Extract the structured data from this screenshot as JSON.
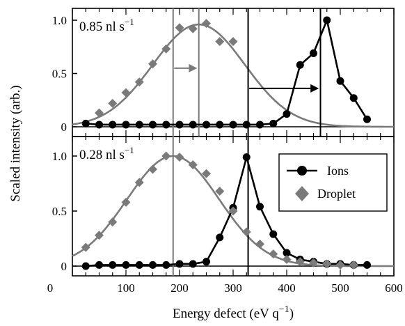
{
  "chart_data": [
    {
      "type": "line",
      "panel": "top",
      "annotation": "0.85 nl s",
      "annotation_sup": "−1",
      "xlim": [
        0,
        600
      ],
      "ylim": [
        0,
        1.0
      ],
      "y_ticks": [
        0,
        0.5,
        1.0
      ],
      "y_tick_labels": [
        "0",
        "0.5",
        "1.0"
      ],
      "vertical_lines": [
        {
          "x": 188,
          "color": "#7a7a7a"
        },
        {
          "x": 236,
          "color": "#7a7a7a"
        },
        {
          "x": 328,
          "color": "#000000"
        },
        {
          "x": 463,
          "color": "#000000"
        }
      ],
      "arrows": [
        {
          "x_from": 190,
          "x_to": 233,
          "y": 0.55,
          "color": "#7a7a7a"
        },
        {
          "x_from": 330,
          "x_to": 460,
          "y": 0.36,
          "color": "#000000"
        }
      ],
      "series": [
        {
          "name": "Ions",
          "marker": "circle",
          "color": "#000000",
          "x": [
            25,
            50,
            75,
            100,
            125,
            150,
            175,
            200,
            225,
            250,
            275,
            300,
            325,
            350,
            375,
            400,
            425,
            450,
            475,
            500,
            525,
            550
          ],
          "y": [
            0.03,
            0.02,
            0.02,
            0.02,
            0.02,
            0.02,
            0.02,
            0.02,
            0.02,
            0.02,
            0.02,
            0.02,
            0.02,
            0.02,
            0.03,
            0.12,
            0.58,
            0.69,
            1.0,
            0.43,
            0.27,
            0.07
          ]
        },
        {
          "name": "Droplet",
          "marker": "diamond",
          "color": "#7a7a7a",
          "x": [
            50,
            75,
            100,
            125,
            150,
            175,
            200,
            225,
            250,
            275,
            300
          ],
          "y": [
            0.13,
            0.22,
            0.32,
            0.42,
            0.59,
            0.73,
            0.93,
            0.92,
            0.97,
            0.8,
            0.8
          ]
        }
      ],
      "fit": {
        "color": "#7a7a7a",
        "center": 236,
        "sigma": 86,
        "amplitude": 0.96
      }
    },
    {
      "type": "line",
      "panel": "bottom",
      "annotation": "0.28 nl s",
      "annotation_sup": "−1",
      "xlim": [
        0,
        600
      ],
      "ylim": [
        0,
        1.0
      ],
      "y_ticks": [
        0,
        0.5,
        1.0
      ],
      "y_tick_labels": [
        "0",
        "0.5",
        "1.0"
      ],
      "vertical_lines": [
        {
          "x": 188,
          "color": "#7a7a7a"
        },
        {
          "x": 328,
          "color": "#000000"
        }
      ],
      "series": [
        {
          "name": "Ions",
          "marker": "circle",
          "color": "#000000",
          "x": [
            25,
            50,
            75,
            100,
            125,
            150,
            175,
            200,
            225,
            250,
            275,
            300,
            325,
            350,
            375,
            400,
            425,
            450,
            475,
            500,
            525,
            550
          ],
          "y": [
            0.0,
            0.01,
            0.01,
            0.01,
            0.01,
            0.01,
            0.01,
            0.02,
            0.02,
            0.04,
            0.26,
            0.53,
            0.99,
            0.54,
            0.29,
            0.12,
            0.06,
            0.04,
            0.02,
            0.02,
            0.01,
            0.01
          ]
        },
        {
          "name": "Droplet",
          "marker": "diamond",
          "color": "#7a7a7a",
          "x": [
            25,
            50,
            75,
            100,
            125,
            150,
            175,
            200,
            225,
            250,
            275,
            300,
            325,
            350,
            375,
            400,
            425,
            450,
            475,
            500,
            525
          ],
          "y": [
            0.17,
            0.28,
            0.4,
            0.58,
            0.76,
            0.88,
            1.0,
            0.99,
            0.92,
            0.84,
            0.68,
            0.5,
            0.31,
            0.2,
            0.11,
            0.06,
            0.04,
            0.03,
            0.02,
            0.01,
            0.01
          ]
        }
      ],
      "fit": {
        "color": "#7a7a7a",
        "center": 188,
        "sigma": 86,
        "amplitude": 1.0
      }
    }
  ],
  "x_axis": {
    "label": "Energy defect (eV q",
    "label_sup": "−1",
    "label_end": ")",
    "ticks": [
      0,
      100,
      200,
      300,
      400,
      500,
      600
    ],
    "tick_labels": [
      "0",
      "100",
      "200",
      "300",
      "400",
      "500",
      "600"
    ]
  },
  "y_axis": {
    "label": "Scaled intensity (arb.)"
  },
  "legend": {
    "placement": "bottom-panel top-right",
    "entries": [
      {
        "label": "Ions",
        "marker": "circle",
        "color": "#000000"
      },
      {
        "label": "Droplet",
        "marker": "diamond",
        "color": "#7a7a7a"
      }
    ]
  }
}
